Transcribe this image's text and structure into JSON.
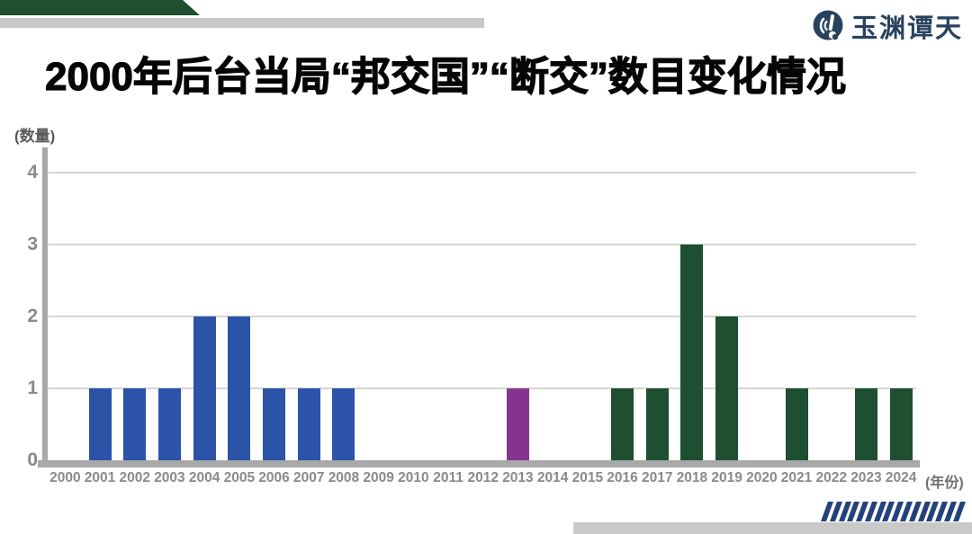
{
  "header": {
    "title": "2000年后台当局“邦交国”“断交”数目变化情况",
    "logo": {
      "text": "玉渊谭天",
      "icon": "wave-exclamation-circle-icon",
      "color": "#27425f"
    }
  },
  "decor": {
    "top_banner_color": "#1d4f30",
    "top_strip_color": "#c9c9c9",
    "bottom_strip_color": "#c9c9c9",
    "slash_color": "#24427a",
    "slash_count": 16
  },
  "chart_data": {
    "type": "bar",
    "title": "2000年后台当局“邦交国”“断交”数目变化情况",
    "ylabel": "(数量)",
    "xlabel": "(年份)",
    "ylim": [
      0,
      4
    ],
    "yticks": [
      0,
      1,
      2,
      3,
      4
    ],
    "grid": true,
    "legend_position": "none",
    "categories": [
      "2000",
      "2001",
      "2002",
      "2003",
      "2004",
      "2005",
      "2006",
      "2007",
      "2008",
      "2009",
      "2010",
      "2011",
      "2012",
      "2013",
      "2014",
      "2015",
      "2016",
      "2017",
      "2018",
      "2019",
      "2020",
      "2021",
      "2022",
      "2023",
      "2024"
    ],
    "values": [
      0,
      1,
      1,
      1,
      2,
      2,
      1,
      1,
      1,
      0,
      0,
      0,
      0,
      1,
      0,
      0,
      1,
      1,
      3,
      2,
      0,
      1,
      0,
      1,
      1
    ],
    "color_keys": [
      "none",
      "blue",
      "blue",
      "blue",
      "blue",
      "blue",
      "blue",
      "blue",
      "blue",
      "none",
      "none",
      "none",
      "none",
      "purple",
      "none",
      "none",
      "green",
      "green",
      "green",
      "green",
      "none",
      "green",
      "none",
      "green",
      "green"
    ],
    "palette": {
      "blue": "#2b53a7",
      "purple": "#86338f",
      "green": "#1d4f30"
    },
    "axis_color": "#a8a8a8",
    "grid_color": "#d6d6d6",
    "tick_color": "#8a8a8a"
  }
}
